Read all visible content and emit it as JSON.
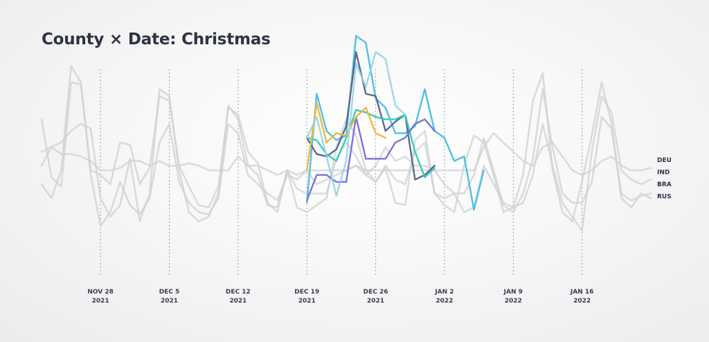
{
  "chart_data": {
    "type": "line",
    "title": "County × Date: Christmas",
    "xlabel": "",
    "ylabel": "",
    "x_start": "2021-11-22",
    "x_end": "2022-01-23",
    "ylim": [
      0,
      100
    ],
    "grid": "vertical-dashed",
    "ticks": [
      {
        "date": "2021-11-28",
        "label1": "NOV 28",
        "label2": "2021"
      },
      {
        "date": "2021-12-05",
        "label1": "DEC 5",
        "label2": "2021"
      },
      {
        "date": "2021-12-12",
        "label1": "DEC 12",
        "label2": "2021"
      },
      {
        "date": "2021-12-19",
        "label1": "DEC 19",
        "label2": "2021"
      },
      {
        "date": "2021-12-26",
        "label1": "DEC 26",
        "label2": "2021"
      },
      {
        "date": "2022-01-02",
        "label1": "JAN 2",
        "label2": "2022"
      },
      {
        "date": "2022-01-09",
        "label1": "JAN 9",
        "label2": "2022"
      },
      {
        "date": "2022-01-16",
        "label1": "JAN 16",
        "label2": "2022"
      }
    ],
    "highlight_range": [
      "2021-12-19",
      "2022-01-03"
    ],
    "legend": [
      "DEU",
      "IND",
      "BRA",
      "RUS"
    ],
    "series": [
      {
        "color": "#cfd0d3",
        "opacity": 0.75,
        "values": [
          62,
          37,
          33,
          78,
          77,
          40,
          38,
          34,
          52,
          51,
          34,
          41,
          72,
          70,
          42,
          33,
          25,
          24,
          33,
          67,
          64,
          48,
          43,
          26,
          22,
          40,
          24,
          22,
          25,
          28,
          50,
          62,
          55,
          40,
          35,
          41,
          26,
          25,
          53,
          57,
          30,
          28,
          30,
          30,
          38,
          54,
          40,
          25,
          22,
          30,
          45,
          75,
          50,
          30,
          26,
          26,
          35,
          63,
          58,
          30,
          27,
          29,
          30
        ]
      },
      {
        "color": "#cfd0d3",
        "opacity": 0.75,
        "values": [
          48,
          50,
          52,
          57,
          60,
          58,
          28,
          20,
          25,
          45,
          18,
          30,
          75,
          72,
          40,
          22,
          18,
          20,
          30,
          68,
          62,
          42,
          38,
          25,
          24,
          40,
          32,
          30,
          30,
          30,
          45,
          52,
          46,
          38,
          35,
          42,
          36,
          34,
          48,
          52,
          30,
          25,
          22,
          42,
          55,
          52,
          38,
          22,
          24,
          38,
          70,
          82,
          40,
          22,
          18,
          35,
          55,
          78,
          60,
          28,
          24,
          30,
          28
        ]
      },
      {
        "color": "#cfd0d3",
        "opacity": 0.75,
        "values": [
          34,
          28,
          40,
          85,
          78,
          38,
          16,
          22,
          35,
          25,
          21,
          28,
          52,
          60,
          35,
          26,
          22,
          21,
          28,
          60,
          56,
          38,
          34,
          30,
          27,
          38,
          36,
          40,
          34,
          36,
          38,
          40,
          42,
          38,
          42,
          50,
          44,
          46,
          42,
          42,
          40,
          34,
          30,
          22,
          24,
          42,
          34,
          26,
          24,
          26,
          38,
          60,
          42,
          26,
          20,
          14,
          48,
          72,
          65,
          40,
          36,
          34,
          36
        ]
      },
      {
        "color": "#cfd0d3",
        "opacity": 0.75,
        "values": [
          42,
          50,
          47,
          47,
          46,
          44,
          40,
          40,
          41,
          44,
          44,
          42,
          44,
          42,
          42,
          43,
          42,
          40,
          40,
          40,
          46,
          42,
          42,
          40,
          38,
          40,
          38,
          40,
          40,
          40,
          40,
          40,
          42,
          40,
          40,
          40,
          40,
          40,
          40,
          40,
          40,
          40,
          40,
          40,
          40,
          50,
          56,
          52,
          48,
          44,
          42,
          50,
          52,
          46,
          40,
          38,
          40,
          44,
          46,
          42,
          40,
          40,
          41
        ]
      },
      {
        "name": "DEU",
        "color": "#4ec0e6",
        "opacity": 1,
        "values": [
          26,
          73,
          57,
          53,
          55,
          98,
          95,
          71,
          67,
          56,
          56,
          59,
          75,
          57,
          54,
          44,
          46,
          23,
          40
        ]
      },
      {
        "name": "IND",
        "color": "#5a6891",
        "opacity": 1,
        "values": [
          54,
          47,
          46,
          49,
          59,
          91,
          73,
          72,
          57,
          61,
          64,
          36,
          38,
          42
        ]
      },
      {
        "name": "BRA",
        "color": "#34cfb7",
        "opacity": 1,
        "values": [
          54,
          53,
          47,
          44,
          54,
          66,
          65,
          63,
          62,
          62,
          64,
          48,
          37,
          41
        ]
      },
      {
        "name": "RUS",
        "color": "#7a73da",
        "opacity": 1,
        "values": [
          27,
          38,
          38,
          35,
          35,
          63,
          45,
          45,
          45,
          52,
          54,
          60,
          62,
          57
        ]
      },
      {
        "color": "#f0b73f",
        "opacity": 1,
        "values": [
          40,
          69,
          52,
          56,
          55,
          63,
          67,
          56,
          54
        ]
      },
      {
        "color": "#96d2e3",
        "opacity": 0.9,
        "values": [
          54,
          63,
          46,
          29,
          44,
          86,
          76,
          91,
          88,
          68,
          64
        ]
      }
    ]
  }
}
